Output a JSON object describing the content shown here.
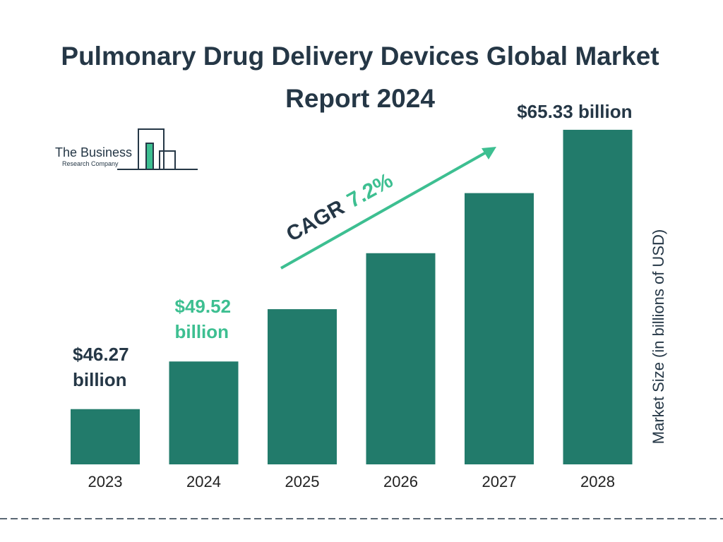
{
  "chart_data": {
    "type": "bar",
    "title": "Pulmonary Drug Delivery Devices Global Market Report 2024",
    "y_label": "Market Size (in billions of USD)",
    "categories": [
      "2023",
      "2024",
      "2025",
      "2026",
      "2027",
      "2028"
    ],
    "values": [
      46.27,
      49.52,
      53.09,
      56.91,
      61.01,
      65.33
    ],
    "value_labels": [
      "$46.27 billion",
      "$49.52 billion",
      null,
      null,
      null,
      "$65.33 billion"
    ],
    "color": "#227b6b",
    "ylim": [
      42.5,
      66
    ],
    "annotation": {
      "label": "CAGR",
      "value": "7.2%"
    },
    "logo": {
      "line1": "The Business",
      "line2": "Research Company"
    }
  }
}
